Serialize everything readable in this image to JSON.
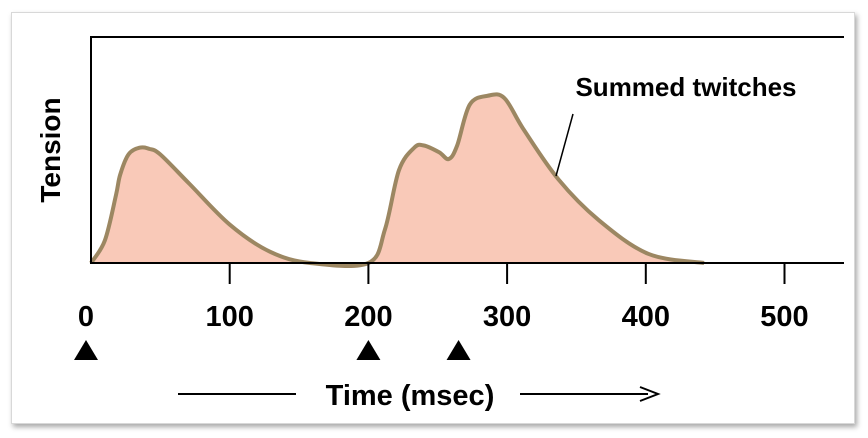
{
  "chart_data": {
    "type": "area",
    "title": "",
    "xlabel": "Time (msec)",
    "ylabel": "Tension",
    "xlim": [
      0,
      545
    ],
    "ylim": [
      0,
      1
    ],
    "x_ticks": [
      0,
      100,
      200,
      300,
      400,
      500
    ],
    "x_tick_labels": [
      "0",
      "100",
      "200",
      "300",
      "400",
      "500"
    ],
    "grid": false,
    "annotation": "Summed twitches",
    "stimuli_ms": [
      0,
      200,
      265
    ],
    "series": [
      {
        "points": [
          [
            0,
            0
          ],
          [
            10,
            0.1
          ],
          [
            18,
            0.3
          ],
          [
            21,
            0.39
          ],
          [
            27,
            0.48
          ],
          [
            35,
            0.51
          ],
          [
            42,
            0.505
          ],
          [
            50,
            0.48
          ],
          [
            71,
            0.35
          ],
          [
            100,
            0.17
          ],
          [
            129,
            0.05
          ],
          [
            158,
            0
          ],
          [
            200,
            0
          ],
          [
            212,
            0.15
          ],
          [
            222,
            0.41
          ],
          [
            233,
            0.51
          ],
          [
            240,
            0.52
          ],
          [
            251,
            0.49
          ],
          [
            258,
            0.46
          ],
          [
            264,
            0.52
          ],
          [
            273,
            0.7
          ],
          [
            286,
            0.74
          ],
          [
            298,
            0.73
          ],
          [
            312,
            0.59
          ],
          [
            337,
            0.37
          ],
          [
            366,
            0.19
          ],
          [
            402,
            0.04
          ],
          [
            442,
            0
          ]
        ]
      }
    ],
    "colors": {
      "fill": "#f9c9b8",
      "stroke": "#9c8762",
      "axis": "#000000"
    }
  }
}
